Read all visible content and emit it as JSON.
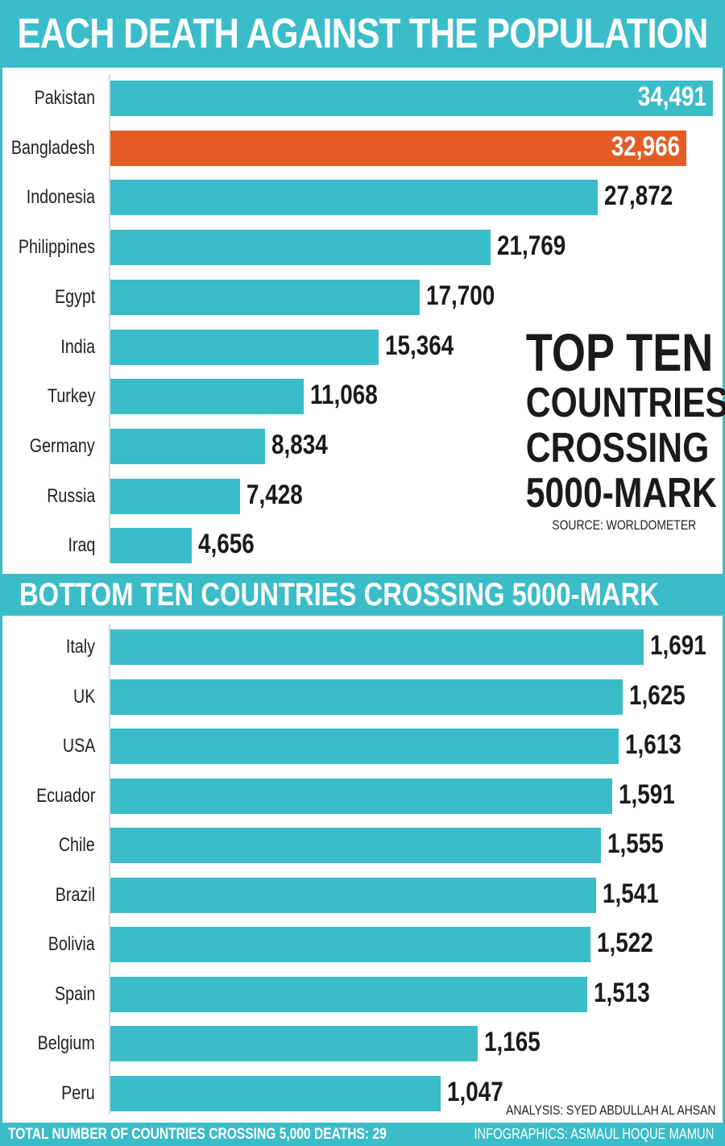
{
  "header": {
    "title": "EACH DEATH AGAINST THE POPULATION"
  },
  "section_bottom": {
    "title": "BOTTOM TEN COUNTRIES CROSSING 5000-MARK"
  },
  "top_callout": {
    "line1": "TOP TEN",
    "line2": "COUNTRIES",
    "line3": "CROSSING",
    "line4": "5000-MARK",
    "source": "SOURCE: WORLDOMETER"
  },
  "credits": {
    "analysis": "ANALYSIS: SYED ABDULLAH AL AHSAN",
    "infographics": "INFOGRAPHICS: ASMAUL HOQUE MAMUN"
  },
  "footer": {
    "total": "TOTAL NUMBER OF COUNTRIES CROSSING 5,000 DEATHS: 29"
  },
  "colors": {
    "bar": "#3bbcc9",
    "highlight": "#e55b24",
    "accent": "#3bbcc9"
  },
  "chart_data": [
    {
      "type": "bar",
      "orientation": "horizontal",
      "title": "TOP TEN COUNTRIES CROSSING 5000-MARK",
      "categories": [
        "Pakistan",
        "Bangladesh",
        "Indonesia",
        "Philippines",
        "Egypt",
        "India",
        "Turkey",
        "Germany",
        "Russia",
        "Iraq"
      ],
      "values": [
        34491,
        32966,
        27872,
        21769,
        17700,
        15364,
        11068,
        8834,
        7428,
        4656
      ],
      "value_labels": [
        "34,491",
        "32,966",
        "27,872",
        "21,769",
        "17,700",
        "15,364",
        "11,068",
        "8,834",
        "7,428",
        "4,656"
      ],
      "highlight": "Bangladesh",
      "grid": false
    },
    {
      "type": "bar",
      "orientation": "horizontal",
      "title": "BOTTOM TEN COUNTRIES CROSSING 5000-MARK",
      "categories": [
        "Italy",
        "UK",
        "USA",
        "Ecuador",
        "Chile",
        "Brazil",
        "Bolivia",
        "Spain",
        "Belgium",
        "Peru"
      ],
      "values": [
        1691,
        1625,
        1613,
        1591,
        1555,
        1541,
        1522,
        1513,
        1165,
        1047
      ],
      "value_labels": [
        "1,691",
        "1,625",
        "1,613",
        "1,591",
        "1,555",
        "1,541",
        "1,522",
        "1,513",
        "1,165",
        "1,047"
      ],
      "grid": false
    }
  ]
}
